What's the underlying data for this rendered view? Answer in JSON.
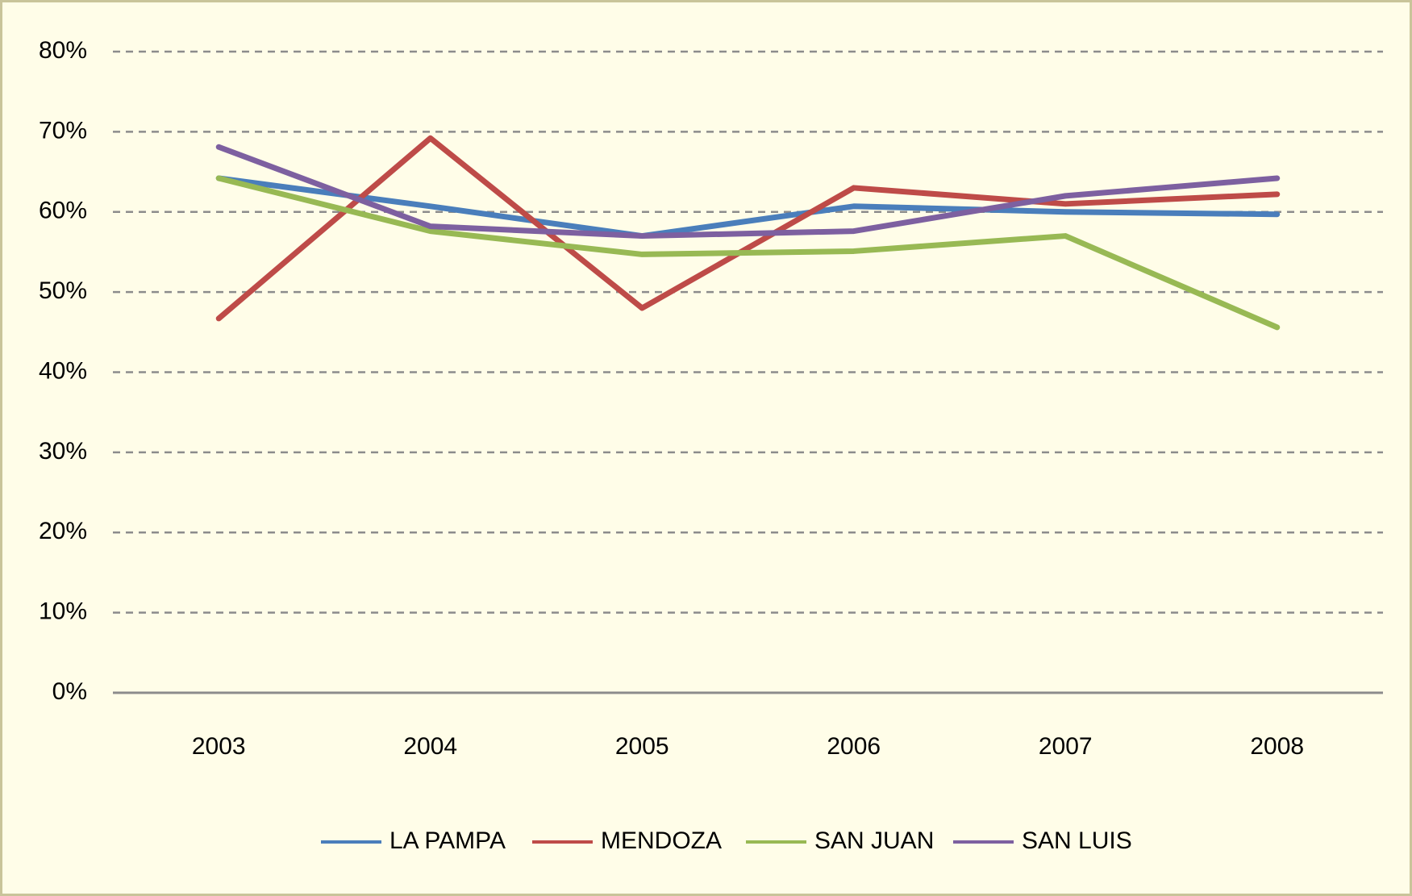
{
  "chart_data": {
    "type": "line",
    "categories": [
      "2003",
      "2004",
      "2005",
      "2006",
      "2007",
      "2008"
    ],
    "series": [
      {
        "name": "LA PAMPA",
        "color": "#4a7ebb",
        "values": [
          64.2,
          60.7,
          57.0,
          60.7,
          60.0,
          59.7
        ]
      },
      {
        "name": "MENDOZA",
        "color": "#be4b48",
        "values": [
          46.7,
          69.2,
          48.0,
          63.0,
          61.0,
          62.2
        ]
      },
      {
        "name": "SAN JUAN",
        "color": "#98b954",
        "values": [
          64.2,
          57.6,
          54.7,
          55.1,
          57.0,
          45.6
        ]
      },
      {
        "name": "SAN LUIS",
        "color": "#7d60a0",
        "values": [
          68.1,
          58.2,
          57.0,
          57.6,
          62.0,
          64.2
        ]
      }
    ],
    "ylim": [
      0,
      80
    ],
    "yticks": [
      {
        "value": 0,
        "label": "0%"
      },
      {
        "value": 10,
        "label": "10%"
      },
      {
        "value": 20,
        "label": "20%"
      },
      {
        "value": 30,
        "label": "30%"
      },
      {
        "value": 40,
        "label": "40%"
      },
      {
        "value": 50,
        "label": "50%"
      },
      {
        "value": 60,
        "label": "60%"
      },
      {
        "value": 70,
        "label": "70%"
      },
      {
        "value": 80,
        "label": "80%"
      }
    ],
    "grid": true,
    "legend": "bottom"
  }
}
